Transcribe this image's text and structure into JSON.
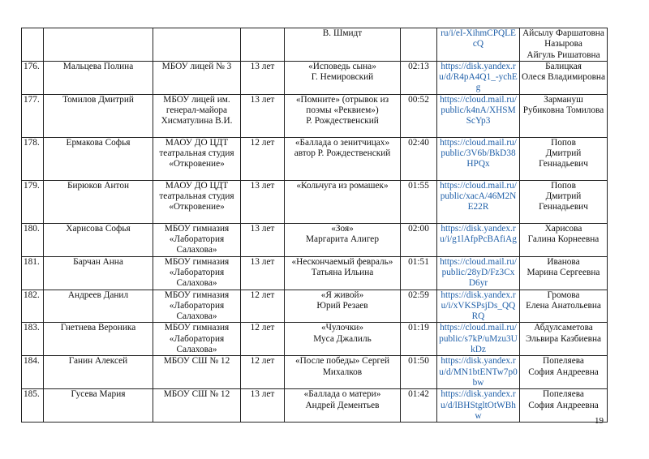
{
  "rows": [
    {
      "num": "",
      "name": "",
      "school": "",
      "age": "",
      "work": "В. Шмидт",
      "time": "",
      "link": "ru/i/eI-XihmCPQLEcQ",
      "teacher": "Айсылу Фаршатовна\nНазырова\nАйгуль Ришатовна"
    },
    {
      "num": "176.",
      "name": "Мальцева Полина",
      "school": "МБОУ лицей № 3",
      "age": "13 лет",
      "work": "«Исповедь сына»\nГ. Немировский",
      "time": "02:13",
      "link": "https://disk.yandex.ru/d/R4pA4Q1_-ychEg",
      "teacher": "Балицкая\nОлеся Владимировна"
    },
    {
      "num": "177.",
      "name": "Томилов Дмитрий",
      "school": "МБОУ лицей им.\nгенерал-майора\nХисматулина В.И.",
      "age": "13 лет",
      "work": "«Помните» (отрывок из\nпоэмы «Реквием»)\nР. Рождественский",
      "time": "00:52",
      "link": "https://cloud.mail.ru/public/k4nA/XHSMScYp3",
      "teacher": "Зармануш\nРубиковна Томилова"
    },
    {
      "num": "178.",
      "name": "Ермакова Софья",
      "school": "МАОУ ДО ЦДТ\nтеатральная студия\n«Откровение»",
      "age": "12 лет",
      "work": "«Баллада о зенитчицах»\nавтор Р. Рождественский",
      "time": "02:40",
      "link": "https://cloud.mail.ru/public/3V6b/BkD38HPQx",
      "teacher": "Попов\nДмитрий Геннадьевич"
    },
    {
      "num": "179.",
      "name": "Бирюков Антон",
      "school": "МАОУ ДО ЦДТ\nтеатральная студия\n«Откровение»",
      "age": "13 лет",
      "work": "«Кольчуга из ромашек»",
      "time": "01:55",
      "link": "https://cloud.mail.ru/public/xacA/46M2NE22R",
      "teacher": "Попов\nДмитрий Геннадьевич"
    },
    {
      "num": "180.",
      "name": "Харисова Софья",
      "school": "МБОУ гимназия\n«Лаборатория\nСалахова»",
      "age": "13 лет",
      "work": "«Зоя»\nМаргарита Алигер",
      "time": "02:00",
      "link": "https://disk.yandex.ru/i/g1lAfpPcBAfiAg",
      "teacher": "Харисова\nГалина Корнеевна"
    },
    {
      "num": "181.",
      "name": "Барчан Анна",
      "school": "МБОУ гимназия\n«Лаборатория\nСалахова»",
      "age": "13 лет",
      "work": "«Нескончаемый февраль»\nТатьяна Ильина",
      "time": "01:51",
      "link": "https://cloud.mail.ru/public/28yD/Fz3CxD6yr",
      "teacher": "Иванова\nМарина Сергеевна"
    },
    {
      "num": "182.",
      "name": "Андреев Данил",
      "school": "МБОУ гимназия\n«Лаборатория\nСалахова»",
      "age": "12 лет",
      "work": "«Я живой»\nЮрий Резаев",
      "time": "02:59",
      "link": "https://disk.yandex.ru/i/xVKSPsjDs_QQRQ",
      "teacher": "Громова\nЕлена Анатольевна"
    },
    {
      "num": "183.",
      "name": "Гнетнева Вероника",
      "school": "МБОУ гимназия\n«Лаборатория\nСалахова»",
      "age": "12 лет",
      "work": "«Чулочки»\nМуса Джалиль",
      "time": "01:19",
      "link": "https://cloud.mail.ru/public/s7kP/uMzu3UkDz",
      "teacher": "Абдулсаметова\nЭльвира Казбиевна"
    },
    {
      "num": "184.",
      "name": "Ганин Алексей",
      "school": "МБОУ СШ № 12",
      "age": "12 лет",
      "work": "«После победы» Сергей\nМихалков",
      "time": "01:50",
      "link": "https://disk.yandex.ru/d/MN1btENTw7p0bw",
      "teacher": "Попеляева\nСофия Андреевна"
    },
    {
      "num": "185.",
      "name": "Гусева Мария",
      "school": "МБОУ СШ № 12",
      "age": "13 лет",
      "work": "«Баллада о матери»\nАндрей Дементьев",
      "time": "01:42",
      "link": "https://disk.yandex.ru/d/lBHStgltOtWBhw",
      "teacher": "Попеляева\nСофия Андреевна"
    }
  ],
  "page_number": "19",
  "colors": {
    "link": "#1f5fa8",
    "border": "#222222"
  }
}
